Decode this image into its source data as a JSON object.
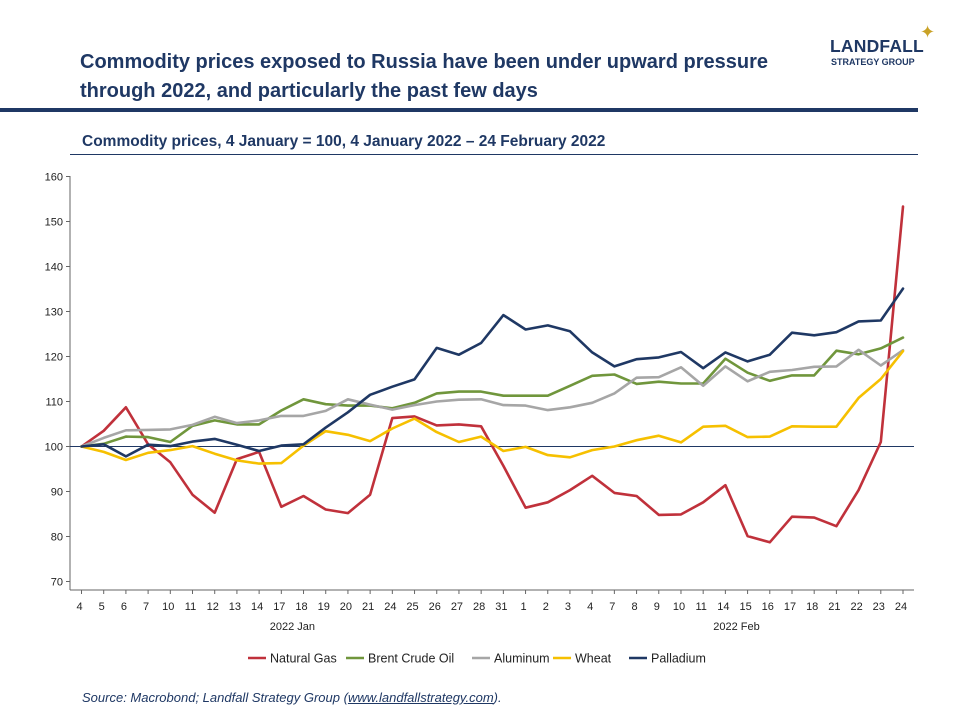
{
  "header": {
    "title": "Commodity prices exposed to Russia have been under upward pressure through 2022, and particularly the past few days",
    "subtitle": "Commodity prices, 4 January = 100, 4 January 2022 – 24 February 2022",
    "logo": {
      "name": "LANDFALL",
      "tagline": "STRATEGY GROUP"
    }
  },
  "footer": {
    "source_prefix": "Source: Macrobond; Landfall Strategy Group (",
    "source_link": "www.landfallstrategy.com",
    "source_suffix": ")."
  },
  "colors": {
    "navy": "#1f3864",
    "natural_gas": "#c0313b",
    "brent": "#70963c",
    "aluminum": "#a6a6a6",
    "wheat": "#f6c000",
    "palladium": "#1f3864"
  },
  "chart_data": {
    "type": "line",
    "x": [
      "4",
      "5",
      "6",
      "7",
      "10",
      "11",
      "12",
      "13",
      "14",
      "17",
      "18",
      "19",
      "20",
      "21",
      "24",
      "25",
      "26",
      "27",
      "28",
      "31",
      "1",
      "2",
      "3",
      "4",
      "7",
      "8",
      "9",
      "10",
      "11",
      "14",
      "15",
      "16",
      "17",
      "18",
      "21",
      "22",
      "23",
      "24"
    ],
    "month_labels": [
      {
        "label": "2022 Jan",
        "index": 9.5
      },
      {
        "label": "2022 Feb",
        "index": 29.5
      }
    ],
    "ylim": [
      70,
      160
    ],
    "yticks": [
      70,
      80,
      90,
      100,
      110,
      120,
      130,
      140,
      150,
      160
    ],
    "reference_line": 100,
    "legend_position": "bottom",
    "series": [
      {
        "name": "Natural Gas",
        "color": "#c0313b",
        "values": [
          100,
          103.5,
          108.7,
          100.5,
          96.5,
          89.3,
          85.3,
          97.2,
          98.8,
          86.6,
          89,
          86,
          85.2,
          89.3,
          106.3,
          106.7,
          104.7,
          104.9,
          104.5,
          95.7,
          86.4,
          87.6,
          90.3,
          93.5,
          89.7,
          89,
          84.8,
          84.9,
          87.6,
          91.4,
          80.1,
          78.7,
          84.4,
          84.2,
          82.3,
          90.3,
          101,
          153.3
        ]
      },
      {
        "name": "Brent Crude Oil",
        "color": "#70963c",
        "values": [
          100,
          100.6,
          102.2,
          102.1,
          101,
          104.6,
          105.8,
          104.9,
          104.9,
          108,
          110.5,
          109.4,
          109.1,
          109.1,
          108.5,
          109.7,
          111.8,
          112.2,
          112.2,
          111.3,
          111.3,
          111.3,
          113.5,
          115.7,
          116,
          113.9,
          114.4,
          114,
          114,
          119.5,
          116.4,
          114.6,
          115.8,
          115.8,
          121.3,
          120.5,
          121.8,
          124.2
        ]
      },
      {
        "name": "Aluminum",
        "color": "#a6a6a6",
        "values": [
          100,
          101.9,
          103.6,
          103.7,
          103.8,
          104.8,
          106.6,
          105.2,
          105.8,
          106.8,
          106.8,
          107.9,
          110.5,
          109.3,
          108.2,
          109.2,
          110,
          110.4,
          110.5,
          109.2,
          109.1,
          108.1,
          108.7,
          109.7,
          111.8,
          115.3,
          115.4,
          117.6,
          113.5,
          117.8,
          114.5,
          116.6,
          117,
          117.7,
          117.8,
          121.5,
          118,
          121.4
        ]
      },
      {
        "name": "Wheat",
        "color": "#f6c000",
        "values": [
          100,
          98.8,
          97,
          98.6,
          99.2,
          100.1,
          98.4,
          96.9,
          96.2,
          96.3,
          100.2,
          103.4,
          102.6,
          101.2,
          104,
          106.2,
          103.2,
          101,
          102.2,
          99,
          99.9,
          98.1,
          97.6,
          99.2,
          100,
          101.4,
          102.4,
          100.9,
          104.4,
          104.6,
          102.1,
          102.2,
          104.5,
          104.4,
          104.4,
          110.8,
          115,
          121.2
        ]
      },
      {
        "name": "Palladium",
        "color": "#1f3864",
        "values": [
          100,
          100.5,
          97.8,
          100.4,
          100.1,
          101.1,
          101.7,
          100.4,
          99,
          100.2,
          100.5,
          104.2,
          107.6,
          111.5,
          113.3,
          114.9,
          121.9,
          120.4,
          123,
          129.2,
          126,
          126.9,
          125.6,
          120.9,
          117.8,
          119.4,
          119.8,
          121,
          117.4,
          120.9,
          118.9,
          120.4,
          125.3,
          124.7,
          125.4,
          127.8,
          128,
          135.1
        ]
      }
    ]
  }
}
